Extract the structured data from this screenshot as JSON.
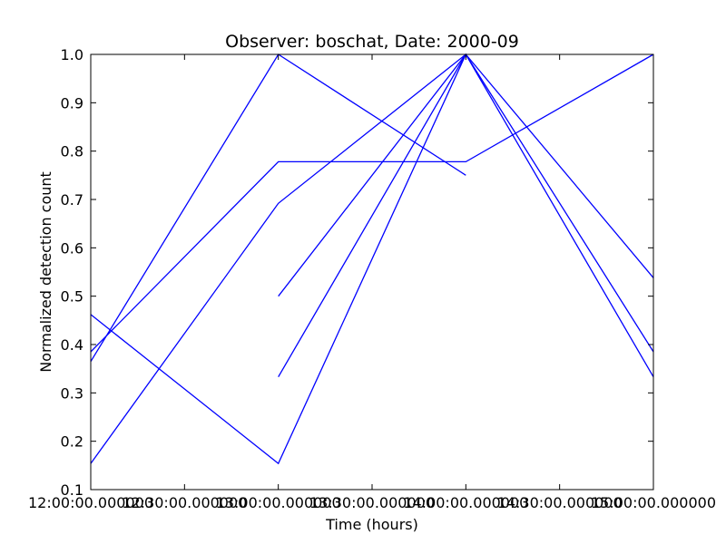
{
  "chart_data": {
    "type": "line",
    "title": "Observer: boschat, Date: 2000-09",
    "xlabel": "Time (hours)",
    "ylabel": "Normalized detection count",
    "xlim": [
      12.0,
      15.0
    ],
    "ylim": [
      0.1,
      1.0
    ],
    "x_ticks": [
      {
        "value": 12.0,
        "label": "12:00:00.000000"
      },
      {
        "value": 12.5,
        "label": "12:30:00.000000"
      },
      {
        "value": 13.0,
        "label": "13:00:00.000000"
      },
      {
        "value": 13.5,
        "label": "13:30:00.000000"
      },
      {
        "value": 14.0,
        "label": "14:00:00.000000"
      },
      {
        "value": 14.5,
        "label": "14:30:00.000000"
      },
      {
        "value": 15.0,
        "label": "15:00:00.000000"
      }
    ],
    "y_ticks": [
      {
        "value": 0.1,
        "label": "0.1"
      },
      {
        "value": 0.2,
        "label": "0.2"
      },
      {
        "value": 0.3,
        "label": "0.3"
      },
      {
        "value": 0.4,
        "label": "0.4"
      },
      {
        "value": 0.5,
        "label": "0.5"
      },
      {
        "value": 0.6,
        "label": "0.6"
      },
      {
        "value": 0.7,
        "label": "0.7"
      },
      {
        "value": 0.8,
        "label": "0.8"
      },
      {
        "value": 0.9,
        "label": "0.9"
      },
      {
        "value": 1.0,
        "label": "1.0"
      }
    ],
    "grid": false,
    "line_color": "#0000ff",
    "series": [
      {
        "x": [
          12.0,
          13.0,
          14.0
        ],
        "y": [
          0.365,
          1.0,
          0.75
        ]
      },
      {
        "x": [
          12.0,
          13.0,
          14.0,
          15.0
        ],
        "y": [
          0.385,
          0.778,
          0.778,
          1.0
        ]
      },
      {
        "x": [
          12.0,
          13.0,
          14.0,
          15.0
        ],
        "y": [
          0.154,
          0.692,
          1.0,
          0.538
        ]
      },
      {
        "x": [
          12.0,
          13.0,
          14.0,
          15.0
        ],
        "y": [
          0.462,
          0.154,
          1.0,
          0.385
        ]
      },
      {
        "x": [
          13.0,
          14.0,
          15.0
        ],
        "y": [
          0.5,
          1.0,
          0.333
        ]
      },
      {
        "x": [
          13.0,
          14.0
        ],
        "y": [
          0.333,
          1.0
        ]
      }
    ]
  }
}
